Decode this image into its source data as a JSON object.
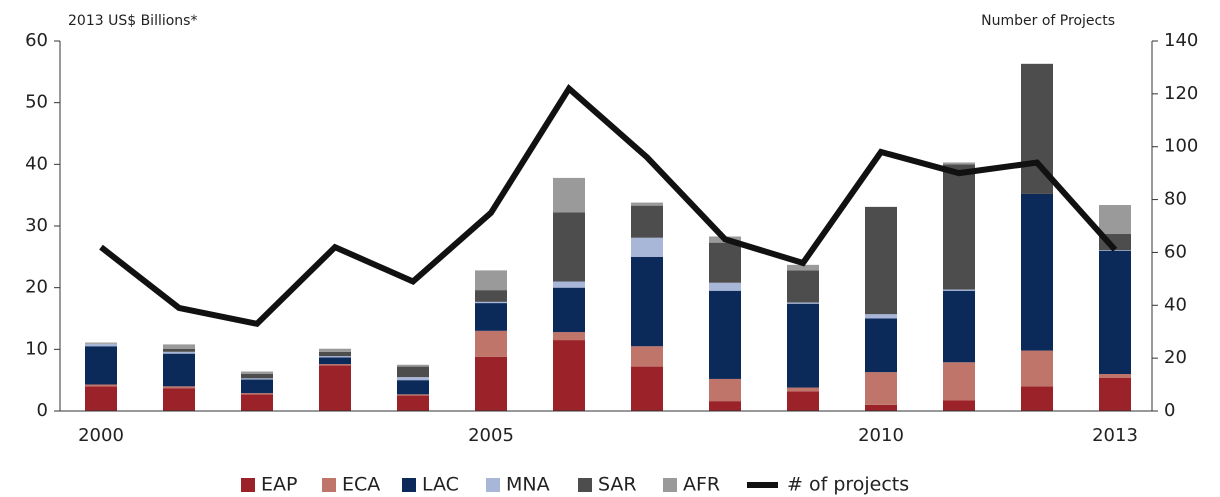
{
  "chart_data": {
    "type": "bar",
    "stacked": true,
    "y_label": "2013 US$ Billions*",
    "y2_label": "Number of Projects",
    "categories": [
      "2000",
      null,
      null,
      null,
      null,
      "2005",
      null,
      null,
      null,
      null,
      "2010",
      null,
      null,
      "2013"
    ],
    "series": [
      {
        "name": "EAP",
        "color": "#9b2229",
        "values": [
          4.0,
          3.7,
          2.7,
          7.4,
          2.5,
          8.8,
          11.5,
          7.2,
          1.6,
          3.2,
          1.0,
          1.7,
          4.0,
          5.4
        ]
      },
      {
        "name": "ECA",
        "color": "#c0756a",
        "values": [
          0.3,
          0.3,
          0.2,
          0.2,
          0.2,
          4.2,
          1.3,
          3.3,
          3.6,
          0.6,
          5.3,
          6.2,
          5.8,
          0.6
        ]
      },
      {
        "name": "LAC",
        "color": "#0b2a5a",
        "values": [
          6.2,
          5.3,
          2.2,
          1.1,
          2.3,
          4.5,
          7.2,
          14.5,
          14.3,
          13.6,
          8.7,
          11.6,
          25.4,
          20.0
        ]
      },
      {
        "name": "MNA",
        "color": "#a8b6d8",
        "values": [
          0.4,
          0.3,
          0.2,
          0.2,
          0.5,
          0.2,
          1.0,
          3.1,
          1.3,
          0.2,
          0.7,
          0.2,
          0,
          0.1
        ]
      },
      {
        "name": "SAR",
        "color": "#4d4d4d",
        "values": [
          0,
          0.5,
          0.7,
          0.7,
          1.7,
          1.9,
          11.2,
          5.2,
          6.5,
          5.2,
          17.4,
          20.3,
          21.1,
          2.6
        ]
      },
      {
        "name": "AFR",
        "color": "#9a9a9a",
        "values": [
          0.2,
          0.7,
          0.4,
          0.5,
          0.3,
          3.2,
          5.6,
          0.5,
          1.0,
          0.9,
          0,
          0.3,
          0,
          4.7
        ]
      },
      {
        "name": "# of projects",
        "type": "line",
        "axis": "y2",
        "color": "#111111",
        "values": [
          62,
          39,
          33,
          62,
          49,
          75,
          122,
          96,
          65,
          56,
          98,
          90,
          94,
          61
        ]
      }
    ],
    "ylim": [
      0,
      60
    ],
    "yticks": [
      0,
      10,
      20,
      30,
      40,
      50,
      60
    ],
    "y2lim": [
      0,
      140
    ],
    "y2ticks": [
      0,
      20,
      40,
      60,
      80,
      100,
      120,
      140
    ],
    "legend": "bottom"
  }
}
